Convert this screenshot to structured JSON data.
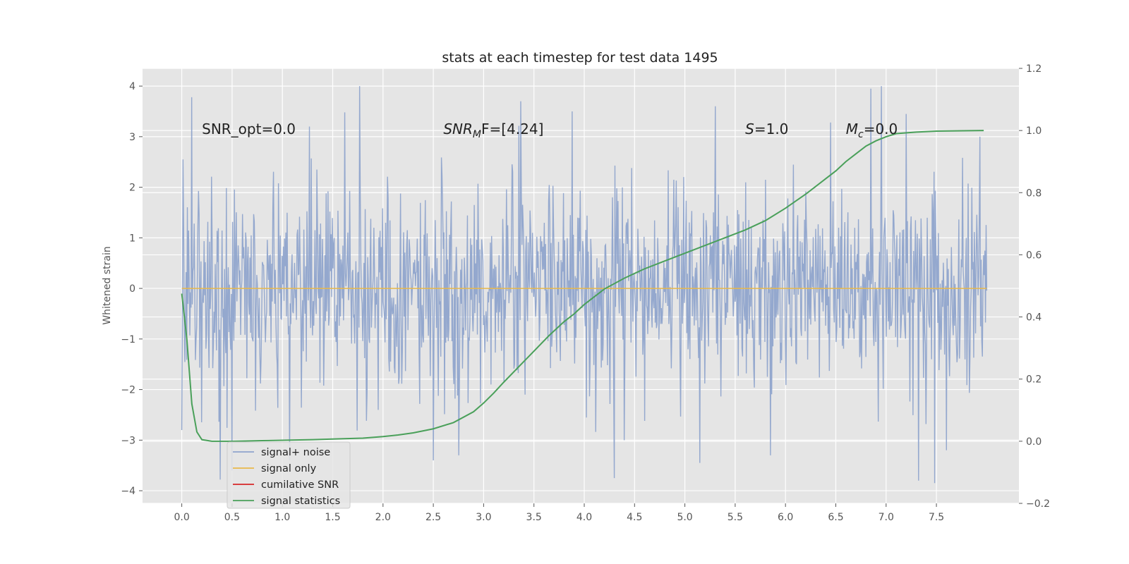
{
  "chart_data": {
    "type": "line",
    "title": "stats at each timestep for test data 1495",
    "xlabel": "",
    "ylabel": "Whitened strain",
    "xlim": [
      -0.39,
      8.32
    ],
    "ylim": [
      -4.25,
      4.35
    ],
    "y2lim": [
      -0.2,
      1.2
    ],
    "xticks": [
      "0.0",
      "0.5",
      "1.0",
      "1.5",
      "2.0",
      "2.5",
      "3.0",
      "3.5",
      "4.0",
      "4.5",
      "5.0",
      "5.5",
      "6.0",
      "6.5",
      "7.0",
      "7.5"
    ],
    "yticks": [
      "−4",
      "−3",
      "−2",
      "−1",
      "0",
      "1",
      "2",
      "3",
      "4"
    ],
    "y2ticks": [
      "−0.2",
      "0.0",
      "0.2",
      "0.4",
      "0.6",
      "0.8",
      "1.0",
      "1.2"
    ],
    "grid": true,
    "legend_position": "lower-left",
    "annotations": [
      {
        "text": "SNR_opt=0.0",
        "x": 0.2,
        "y": 3.15
      },
      {
        "main": "SNR",
        "sub": "M",
        "rest": "F=[4.24]",
        "x": 2.6,
        "y": 3.15
      },
      {
        "main": "S",
        "rest": "=1.0",
        "x": 5.6,
        "y": 3.15
      },
      {
        "main": "M",
        "sub": "c",
        "rest": "=0.0",
        "x": 6.6,
        "y": 3.15
      }
    ],
    "series": [
      {
        "name": "signal+ noise",
        "color": "#8fa4cc",
        "x_range": [
          0.0,
          8.0
        ],
        "noise_sigma": 1.0,
        "peaks": [
          {
            "x": 0.0,
            "y": -2.8
          },
          {
            "x": 0.01,
            "y": 2.55
          },
          {
            "x": 0.1,
            "y": 3.78
          },
          {
            "x": 0.38,
            "y": -3.78
          },
          {
            "x": 0.5,
            "y": -3.6
          },
          {
            "x": 1.07,
            "y": -3.4
          },
          {
            "x": 1.27,
            "y": 3.2
          },
          {
            "x": 1.62,
            "y": 3.48
          },
          {
            "x": 1.77,
            "y": 4.0
          },
          {
            "x": 2.5,
            "y": -3.4
          },
          {
            "x": 2.75,
            "y": -3.3
          },
          {
            "x": 3.37,
            "y": 3.7
          },
          {
            "x": 3.88,
            "y": 3.5
          },
          {
            "x": 4.3,
            "y": -3.75
          },
          {
            "x": 4.4,
            "y": -3.0
          },
          {
            "x": 5.15,
            "y": -3.45
          },
          {
            "x": 5.3,
            "y": 3.6
          },
          {
            "x": 5.85,
            "y": -3.3
          },
          {
            "x": 6.45,
            "y": 3.28
          },
          {
            "x": 6.85,
            "y": 3.95
          },
          {
            "x": 6.95,
            "y": 4.0
          },
          {
            "x": 7.2,
            "y": 3.45
          },
          {
            "x": 7.32,
            "y": -3.8
          },
          {
            "x": 7.48,
            "y": -3.85
          },
          {
            "x": 7.6,
            "y": -3.2
          },
          {
            "x": 7.93,
            "y": 3.0
          }
        ]
      },
      {
        "name": "signal only",
        "color": "#e8b84a",
        "x": [
          0.0,
          8.0
        ],
        "y": [
          0.0,
          0.0
        ]
      },
      {
        "name": "cumilative SNR",
        "color": "#d62728",
        "x": [],
        "y": []
      },
      {
        "name": "signal statistics",
        "color": "#4aa05a",
        "axis": "right",
        "x": [
          0.0,
          0.05,
          0.1,
          0.15,
          0.2,
          0.3,
          0.5,
          0.8,
          1.0,
          1.3,
          1.5,
          1.8,
          2.0,
          2.15,
          2.3,
          2.5,
          2.7,
          2.9,
          3.0,
          3.1,
          3.2,
          3.35,
          3.5,
          3.65,
          3.8,
          3.9,
          4.0,
          4.2,
          4.4,
          4.6,
          4.8,
          5.0,
          5.2,
          5.4,
          5.6,
          5.8,
          6.0,
          6.2,
          6.4,
          6.5,
          6.6,
          6.7,
          6.8,
          6.9,
          7.0,
          7.1,
          7.3,
          7.5,
          7.7,
          7.97
        ],
        "y": [
          0.475,
          0.33,
          0.12,
          0.03,
          0.005,
          0.0,
          0.0,
          0.002,
          0.003,
          0.005,
          0.007,
          0.01,
          0.015,
          0.02,
          0.027,
          0.04,
          0.06,
          0.095,
          0.123,
          0.155,
          0.19,
          0.24,
          0.29,
          0.34,
          0.385,
          0.41,
          0.44,
          0.49,
          0.525,
          0.555,
          0.58,
          0.605,
          0.63,
          0.655,
          0.68,
          0.71,
          0.75,
          0.795,
          0.845,
          0.87,
          0.9,
          0.925,
          0.95,
          0.967,
          0.98,
          0.99,
          0.995,
          0.998,
          0.999,
          1.0
        ]
      }
    ]
  }
}
